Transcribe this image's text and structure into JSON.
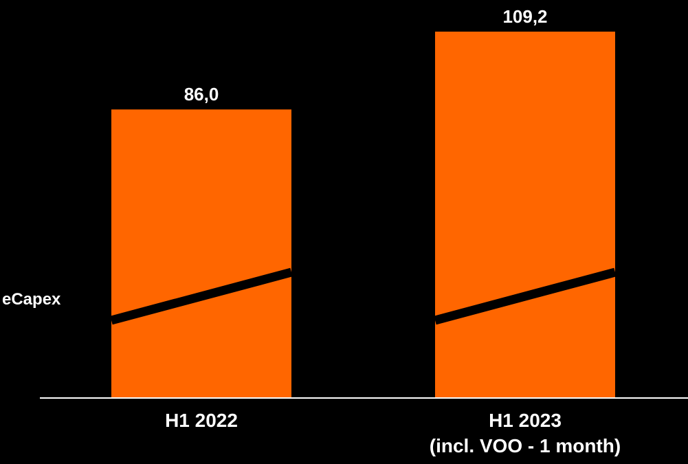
{
  "chart_data": {
    "type": "bar",
    "categories": [
      [
        "H1 2022"
      ],
      [
        "H1 2023",
        "(incl. VOO - 1 month)"
      ]
    ],
    "values": [
      86.0,
      109.2
    ],
    "value_labels": [
      "86,0",
      "109,2"
    ],
    "y_label": "eCapex",
    "ylim": [
      0,
      109.2
    ],
    "grid": false,
    "legend": "none",
    "colors": {
      "background": "#000000",
      "bar": "#ff6600",
      "break_line": "#000000",
      "axis": "#ffffff",
      "text": "#ffffff"
    }
  }
}
